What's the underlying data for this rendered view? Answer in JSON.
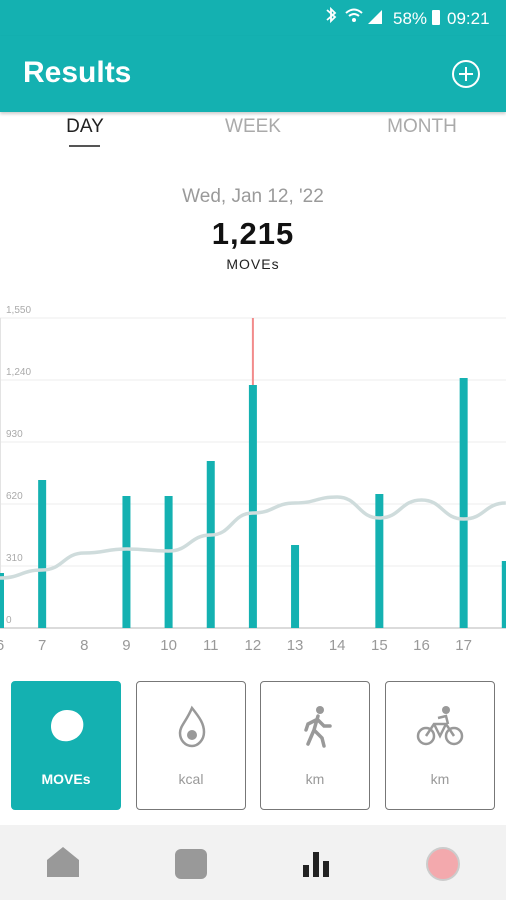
{
  "status_bar": {
    "battery": "58%",
    "time": "09:21"
  },
  "header": {
    "title": "Results"
  },
  "tabs": [
    "DAY",
    "WEEK",
    "MONTH"
  ],
  "summary": {
    "date": "Wed, Jan 12, '22",
    "value": "1,215",
    "unit": "MOVEs"
  },
  "chart_data": {
    "type": "bar",
    "categories": [
      "6",
      "7",
      "8",
      "9",
      "10",
      "11",
      "12",
      "13",
      "14",
      "15",
      "16",
      "17",
      null
    ],
    "series": [
      {
        "type": "bar",
        "color": "#14b1b1",
        "values": [
          275,
          740,
          null,
          660,
          660,
          835,
          1215,
          415,
          null,
          670,
          null,
          1250,
          335
        ]
      },
      {
        "type": "line",
        "color": "#cfdcdc",
        "values": [
          250,
          290,
          375,
          395,
          385,
          465,
          575,
          625,
          655,
          550,
          640,
          545,
          625
        ]
      }
    ],
    "highlight_color": "#f28b8b",
    "ylim": [
      0,
      1550
    ],
    "yticks": [
      0,
      310,
      620,
      930,
      {
        "value": 1240,
        "label": "1,240"
      },
      {
        "value": 1550,
        "label": "1,550"
      }
    ],
    "grid": true
  },
  "metrics": [
    "MOVEs",
    "kcal",
    "km",
    "km"
  ]
}
